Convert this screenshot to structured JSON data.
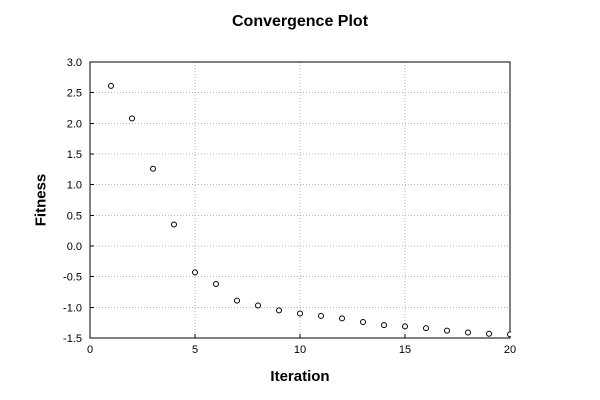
{
  "chart_data": {
    "type": "scatter",
    "title": "Convergence Plot",
    "xlabel": "Iteration",
    "ylabel": "Fitness",
    "series": [
      {
        "name": "fitness",
        "marker": "open-circle",
        "x": [
          1,
          2,
          3,
          4,
          5,
          6,
          7,
          8,
          9,
          10,
          11,
          12,
          13,
          14,
          15,
          16,
          17,
          18,
          19,
          20
        ],
        "y": [
          2.61,
          2.08,
          1.26,
          0.35,
          -0.43,
          -0.62,
          -0.89,
          -0.97,
          -1.05,
          -1.1,
          -1.14,
          -1.18,
          -1.24,
          -1.29,
          -1.31,
          -1.34,
          -1.38,
          -1.41,
          -1.43,
          -1.44
        ]
      }
    ],
    "xlim": [
      0,
      20
    ],
    "ylim": [
      -1.5,
      3.0
    ],
    "xticks": {
      "values": [
        0,
        5,
        10,
        15,
        20
      ],
      "labels": [
        "0",
        "5",
        "10",
        "15",
        "20"
      ]
    },
    "yticks": {
      "values": [
        3.0,
        2.5,
        2.0,
        1.5,
        1.0,
        0.5,
        0.0,
        -0.5,
        -1.0,
        -1.5
      ],
      "labels": [
        "3.0",
        "2.5",
        "2.0",
        "1.5",
        "1.0",
        "0.5",
        "0.0",
        "-0.5",
        "-1.0",
        "-1.5"
      ]
    },
    "grid": true,
    "grid_style": "dotted",
    "legend": "none",
    "colors": {
      "background": "#ffffff",
      "text": "#000000",
      "axis": "#000000",
      "grid": "#b4b4b4",
      "marker_edge": "#000000",
      "marker_fill": "#ffffff"
    }
  }
}
